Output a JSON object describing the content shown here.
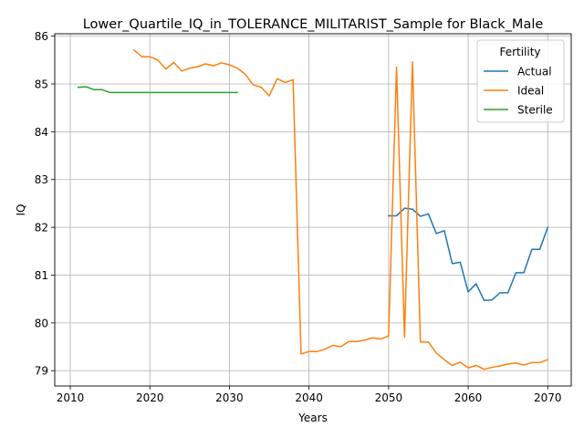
{
  "chart_data": {
    "type": "line",
    "title": "Lower_Quartile_IQ_in_TOLERANCE_MILITARIST_Sample for Black_Male",
    "xlabel": "Years",
    "ylabel": "IQ",
    "xlim": [
      2008.05,
      2072.95
    ],
    "ylim": [
      78.68,
      86.05
    ],
    "xticks": [
      2010,
      2020,
      2030,
      2040,
      2050,
      2060,
      2070
    ],
    "yticks": [
      79,
      80,
      81,
      82,
      83,
      84,
      85,
      86
    ],
    "grid": true,
    "legend": {
      "title": "Fertility",
      "position": "top-right"
    },
    "series": [
      {
        "name": "Actual",
        "color": "#1f77b4",
        "x": [
          2050,
          2051,
          2052,
          2053,
          2054,
          2055,
          2056,
          2057,
          2058,
          2059,
          2060,
          2061,
          2062,
          2063,
          2064,
          2065,
          2066,
          2067,
          2068,
          2069,
          2070
        ],
        "y": [
          82.24,
          82.24,
          82.4,
          82.38,
          82.23,
          82.28,
          81.87,
          81.93,
          81.24,
          81.27,
          80.65,
          80.82,
          80.47,
          80.48,
          80.63,
          80.63,
          81.05,
          81.05,
          81.54,
          81.54,
          82.0
        ]
      },
      {
        "name": "Ideal",
        "color": "#ff7f0e",
        "x": [
          2018,
          2019,
          2020,
          2021,
          2022,
          2023,
          2024,
          2025,
          2026,
          2027,
          2028,
          2029,
          2030,
          2031,
          2032,
          2033,
          2034,
          2035,
          2036,
          2037,
          2038,
          2039,
          2040,
          2041,
          2042,
          2043,
          2044,
          2045,
          2046,
          2047,
          2048,
          2049,
          2050,
          2051,
          2052,
          2053,
          2054,
          2055,
          2056,
          2057,
          2058,
          2059,
          2060,
          2061,
          2062,
          2063,
          2064,
          2065,
          2066,
          2067,
          2068,
          2069,
          2070
        ],
        "y": [
          85.71,
          85.57,
          85.57,
          85.5,
          85.31,
          85.45,
          85.27,
          85.33,
          85.36,
          85.42,
          85.38,
          85.44,
          85.4,
          85.33,
          85.2,
          84.98,
          84.93,
          84.75,
          85.11,
          85.03,
          85.09,
          79.35,
          79.4,
          79.4,
          79.45,
          79.53,
          79.5,
          79.61,
          79.61,
          79.64,
          79.69,
          79.66,
          79.73,
          85.35,
          79.7,
          85.46,
          79.6,
          79.6,
          79.37,
          79.23,
          79.11,
          79.18,
          79.06,
          79.11,
          79.03,
          79.07,
          79.1,
          79.14,
          79.16,
          79.12,
          79.17,
          79.17,
          79.23
        ]
      },
      {
        "name": "Sterile",
        "color": "#2ca02c",
        "x": [
          2011,
          2012,
          2013,
          2014,
          2015,
          2016,
          2017,
          2018,
          2019,
          2020,
          2021,
          2022,
          2023,
          2024,
          2025,
          2026,
          2027,
          2028,
          2029,
          2030,
          2031
        ],
        "y": [
          84.93,
          84.94,
          84.88,
          84.88,
          84.82,
          84.82,
          84.82,
          84.82,
          84.82,
          84.82,
          84.82,
          84.82,
          84.82,
          84.82,
          84.82,
          84.82,
          84.82,
          84.82,
          84.82,
          84.82,
          84.82
        ]
      }
    ]
  }
}
